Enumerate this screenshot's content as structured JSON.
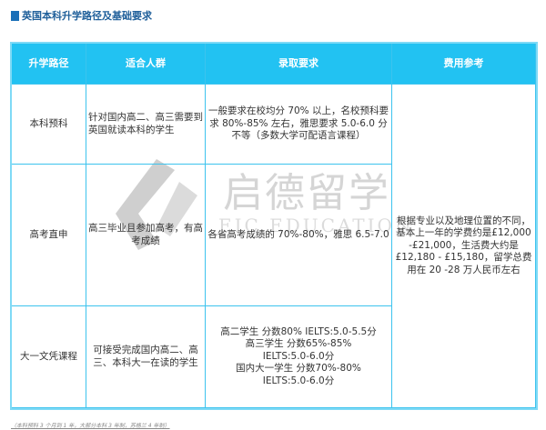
{
  "title": "英国本科升学路径及基础要求",
  "header": [
    "升学路径",
    "适合人群",
    "录取要求",
    "费用参考"
  ],
  "rows": [
    {
      "path": "本科预科",
      "audience": "针对国内高二、高三需要到英国就读本科的学生",
      "requirements": "一般要求在校均分 70% 以上，名校预科要求 80%-85% 左右，雅思要求 5.0-6.0 分不等（多数大学可配语言课程）"
    },
    {
      "path": "高考直申",
      "audience": "高三毕业且参加高考，有高考成绩",
      "requirements": "各省高考成绩的 70%-80%，雅思 6.5-7.0"
    },
    {
      "path": "大一文凭课程",
      "audience": "可接受完成国内高二、高三、本科大一在读的学生",
      "requirements_lines": [
        "高二学生 分数80% IELTS:5.0-5.5分",
        "高三学生 分数65%-85%",
        "IELTS:5.0-6.0分",
        "国内大一学生 分数70%-80%",
        "IELTS:5.0-6.0分"
      ]
    }
  ],
  "fees": "根据专业以及地理位置的不同，基本上一年的学费约是£12,000 -£21,000，生活费大约是£12,180 - £15,180，留学总费用在 20 -28 万人民币左右",
  "watermark": {
    "cn": "启德留学",
    "en": "EIC EDUCATION"
  },
  "footnote": "（本科预科 3 个月到 1 年，大部分本科 3 年制，苏格兰 4 年制）",
  "colors": {
    "header_bg": "#22c2f2",
    "border": "#3cc3ee",
    "title": "#1f5f9a"
  }
}
